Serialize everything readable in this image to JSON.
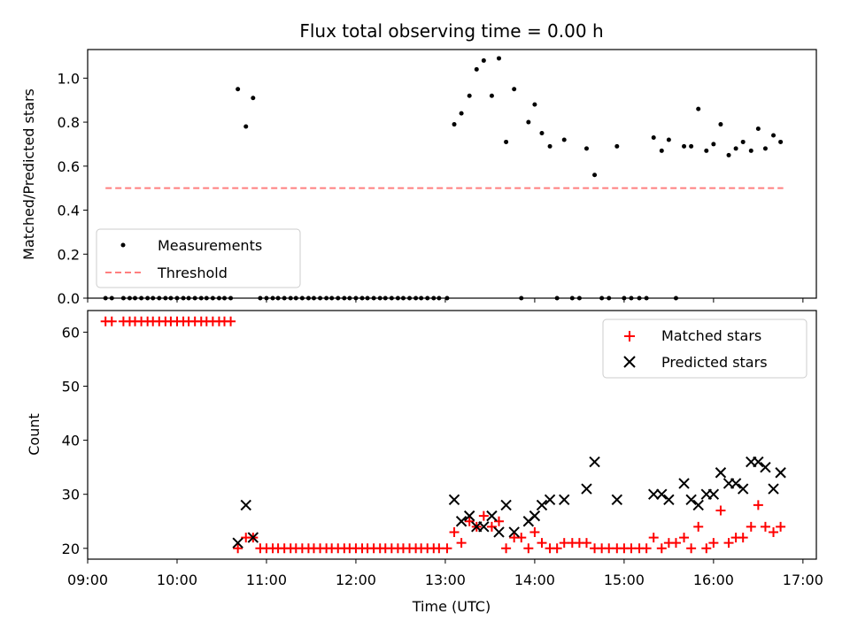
{
  "chart_data": [
    {
      "type": "scatter",
      "title": "Flux total observing time = 0.00 h",
      "ylabel": "Matched/Predicted stars",
      "xlim": [
        9.0,
        17.15
      ],
      "ylim": [
        0.0,
        1.13
      ],
      "yticks": [
        "0.0",
        "0.2",
        "0.4",
        "0.6",
        "0.8",
        "1.0"
      ],
      "legend": {
        "position": "lower-left",
        "labels": [
          "Measurements",
          "Threshold"
        ]
      },
      "threshold": {
        "value": 0.5,
        "x": [
          9.2,
          16.78
        ],
        "color": "#ff7f7f"
      },
      "measurements": {
        "x": [
          9.2,
          9.27,
          9.4,
          9.47,
          9.53,
          9.6,
          9.67,
          9.73,
          9.8,
          9.87,
          9.93,
          10.0,
          10.07,
          10.13,
          10.2,
          10.27,
          10.33,
          10.4,
          10.47,
          10.53,
          10.6,
          10.68,
          10.77,
          10.85,
          10.93,
          11.0,
          11.07,
          11.13,
          11.2,
          11.27,
          11.33,
          11.4,
          11.47,
          11.53,
          11.6,
          11.67,
          11.73,
          11.8,
          11.87,
          11.93,
          12.0,
          12.07,
          12.13,
          12.2,
          12.27,
          12.33,
          12.4,
          12.47,
          12.53,
          12.6,
          12.67,
          12.73,
          12.8,
          12.87,
          12.93,
          13.02,
          13.1,
          13.18,
          13.27,
          13.35,
          13.43,
          13.52,
          13.6,
          13.68,
          13.77,
          13.85,
          13.93,
          14.0,
          14.08,
          14.17,
          14.25,
          14.33,
          14.42,
          14.5,
          14.58,
          14.67,
          14.75,
          14.83,
          14.92,
          15.0,
          15.08,
          15.17,
          15.25,
          15.33,
          15.42,
          15.5,
          15.58,
          15.67,
          15.75,
          15.83,
          15.92,
          16.0,
          16.08,
          16.17,
          16.25,
          16.33,
          16.42,
          16.5,
          16.58,
          16.67,
          16.75
        ],
        "y": [
          0,
          0,
          0,
          0,
          0,
          0,
          0,
          0,
          0,
          0,
          0,
          0,
          0,
          0,
          0,
          0,
          0,
          0,
          0,
          0,
          0,
          0.95,
          0.78,
          0.91,
          0,
          0,
          0,
          0,
          0,
          0,
          0,
          0,
          0,
          0,
          0,
          0,
          0,
          0,
          0,
          0,
          0,
          0,
          0,
          0,
          0,
          0,
          0,
          0,
          0,
          0,
          0,
          0,
          0,
          0,
          0,
          0,
          0.79,
          0.84,
          0.92,
          1.04,
          1.08,
          0.92,
          1.09,
          0.71,
          0.95,
          0,
          0.8,
          0.88,
          0.75,
          0.69,
          0,
          0.72,
          0,
          0,
          0.68,
          0.56,
          0,
          0,
          0.69,
          0,
          0,
          0,
          0,
          0.73,
          0.67,
          0.72,
          0,
          0.69,
          0.69,
          0.86,
          0.67,
          0.7,
          0.79,
          0.65,
          0.68,
          0.71,
          0.67,
          0.77,
          0.68,
          0.74,
          0.71
        ]
      }
    },
    {
      "type": "scatter",
      "xlabel": "Time (UTC)",
      "ylabel": "Count",
      "xlim": [
        9.0,
        17.15
      ],
      "ylim": [
        18,
        64
      ],
      "yticks": [
        "20",
        "30",
        "40",
        "50",
        "60"
      ],
      "xticks": [
        "09:00",
        "10:00",
        "11:00",
        "12:00",
        "13:00",
        "14:00",
        "15:00",
        "16:00",
        "17:00"
      ],
      "legend": {
        "position": "upper-right",
        "labels": [
          "Matched stars",
          "Predicted stars"
        ]
      },
      "series": [
        {
          "name": "Matched stars",
          "marker": "+",
          "color": "#ff0000",
          "x": [
            9.2,
            9.27,
            9.4,
            9.47,
            9.53,
            9.6,
            9.67,
            9.73,
            9.8,
            9.87,
            9.93,
            10.0,
            10.07,
            10.13,
            10.2,
            10.27,
            10.33,
            10.4,
            10.47,
            10.53,
            10.6,
            10.68,
            10.77,
            10.85,
            10.93,
            11.0,
            11.07,
            11.13,
            11.2,
            11.27,
            11.33,
            11.4,
            11.47,
            11.53,
            11.6,
            11.67,
            11.73,
            11.8,
            11.87,
            11.93,
            12.0,
            12.07,
            12.13,
            12.2,
            12.27,
            12.33,
            12.4,
            12.47,
            12.53,
            12.6,
            12.67,
            12.73,
            12.8,
            12.87,
            12.93,
            13.02,
            13.1,
            13.18,
            13.27,
            13.35,
            13.43,
            13.52,
            13.6,
            13.68,
            13.77,
            13.85,
            13.93,
            14.0,
            14.08,
            14.17,
            14.25,
            14.33,
            14.42,
            14.5,
            14.58,
            14.67,
            14.75,
            14.83,
            14.92,
            15.0,
            15.08,
            15.17,
            15.25,
            15.33,
            15.42,
            15.5,
            15.58,
            15.67,
            15.75,
            15.83,
            15.92,
            16.0,
            16.08,
            16.17,
            16.25,
            16.33,
            16.42,
            16.5,
            16.58,
            16.67,
            16.75
          ],
          "y": [
            62,
            62,
            62,
            62,
            62,
            62,
            62,
            62,
            62,
            62,
            62,
            62,
            62,
            62,
            62,
            62,
            62,
            62,
            62,
            62,
            62,
            20,
            22,
            22,
            20,
            20,
            20,
            20,
            20,
            20,
            20,
            20,
            20,
            20,
            20,
            20,
            20,
            20,
            20,
            20,
            20,
            20,
            20,
            20,
            20,
            20,
            20,
            20,
            20,
            20,
            20,
            20,
            20,
            20,
            20,
            20,
            23,
            21,
            25,
            24,
            26,
            24,
            25,
            20,
            22,
            22,
            20,
            23,
            21,
            20,
            20,
            21,
            21,
            21,
            21,
            20,
            20,
            20,
            20,
            20,
            20,
            20,
            20,
            22,
            20,
            21,
            21,
            22,
            20,
            24,
            20,
            21,
            27,
            21,
            22,
            22,
            24,
            28,
            24,
            23,
            24
          ]
        },
        {
          "name": "Predicted stars",
          "marker": "x",
          "color": "#000000",
          "x": [
            10.68,
            10.77,
            10.85,
            13.1,
            13.18,
            13.27,
            13.35,
            13.43,
            13.52,
            13.6,
            13.68,
            13.77,
            13.93,
            14.0,
            14.08,
            14.17,
            14.33,
            14.58,
            14.67,
            14.92,
            15.33,
            15.42,
            15.5,
            15.67,
            15.75,
            15.83,
            15.92,
            16.0,
            16.08,
            16.17,
            16.25,
            16.33,
            16.42,
            16.5,
            16.58,
            16.67,
            16.75
          ],
          "y": [
            21,
            28,
            22,
            29,
            25,
            26,
            24,
            24,
            26,
            23,
            28,
            23,
            25,
            26,
            28,
            29,
            29,
            31,
            36,
            29,
            30,
            30,
            29,
            32,
            29,
            28,
            30,
            30,
            34,
            32,
            32,
            31,
            36,
            36,
            35,
            31,
            34
          ]
        }
      ]
    }
  ]
}
